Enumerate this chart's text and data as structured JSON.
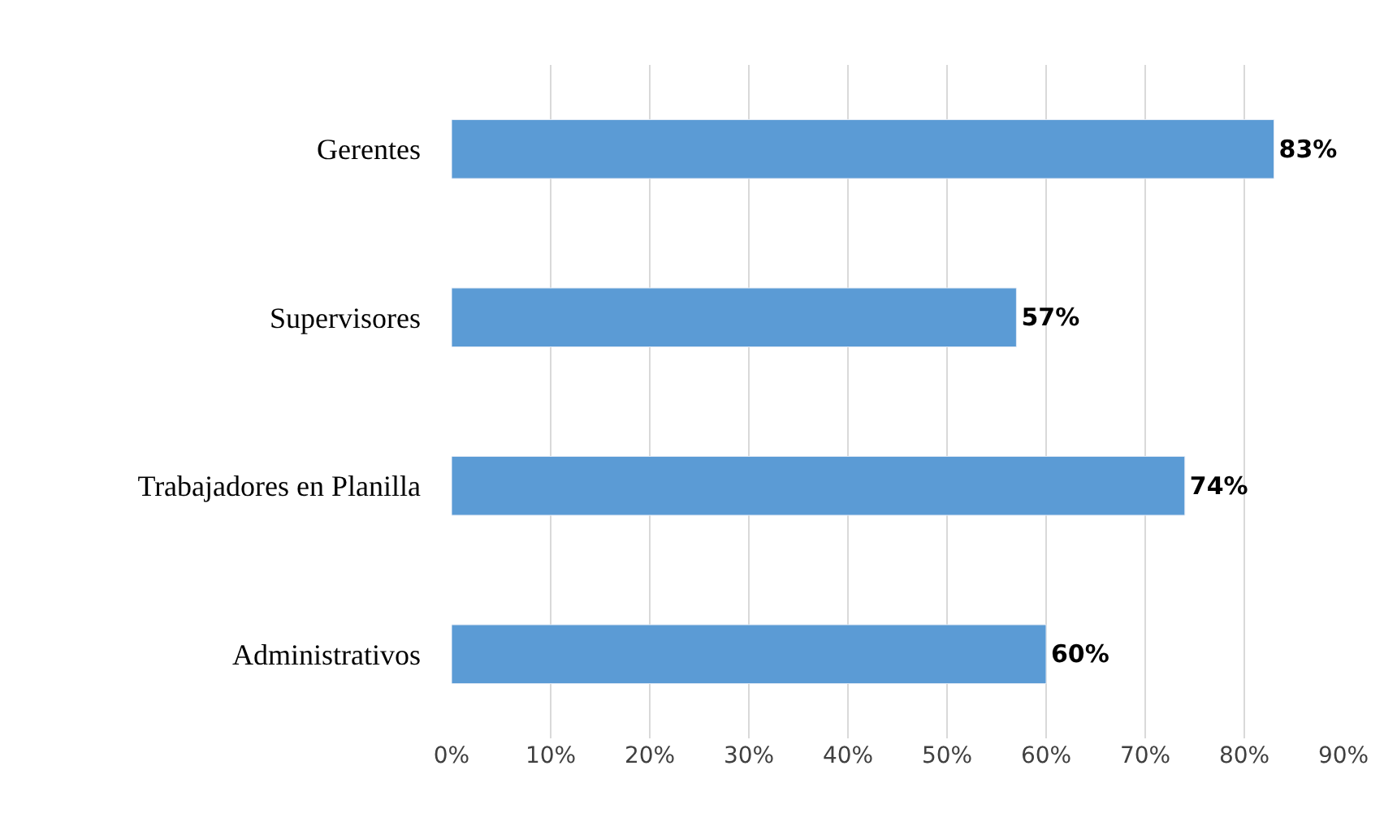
{
  "chart_data": {
    "type": "bar",
    "orientation": "horizontal",
    "categories": [
      "Gerentes",
      "Supervisores",
      "Trabajadores en Planilla",
      "Administrativos"
    ],
    "values": [
      83,
      57,
      74,
      60
    ],
    "value_labels": [
      "83%",
      "57%",
      "74%",
      "60%"
    ],
    "color": "#5b9bd5",
    "xlim": [
      0,
      90
    ],
    "xticks": [
      {
        "value": 0,
        "label": "0%"
      },
      {
        "value": 10,
        "label": "10%"
      },
      {
        "value": 20,
        "label": "20%"
      },
      {
        "value": 30,
        "label": "30%"
      },
      {
        "value": 40,
        "label": "40%"
      },
      {
        "value": 50,
        "label": "50%"
      },
      {
        "value": 60,
        "label": "60%"
      },
      {
        "value": 70,
        "label": "70%"
      },
      {
        "value": 80,
        "label": "80%"
      },
      {
        "value": 90,
        "label": "90%"
      }
    ],
    "grid": "x",
    "legend": false
  }
}
